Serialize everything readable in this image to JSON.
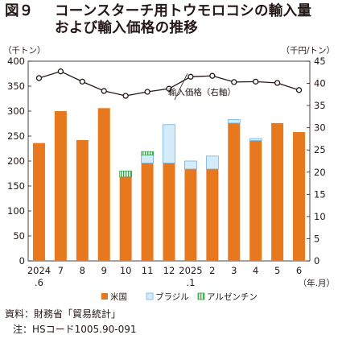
{
  "title": {
    "fig_number": "図９",
    "line1": "コーンスターチ用トウモロコシの輸入量",
    "line2": "および輸入価格の推移"
  },
  "chart_data": {
    "type": "bar",
    "categories": [
      "2024",
      "7",
      "8",
      "9",
      "10",
      "11",
      "12",
      "2025",
      "2",
      "3",
      "4",
      "5",
      "6"
    ],
    "category_sublabels": [
      ".6",
      "",
      "",
      "",
      "",
      "",
      "",
      ".1",
      "",
      "",
      "",
      "",
      ""
    ],
    "x_unit": "（年.月）",
    "left_axis": {
      "unit": "（千トン）",
      "min": 0,
      "max": 400,
      "ticks": [
        0,
        50,
        100,
        150,
        200,
        250,
        300,
        350,
        400
      ]
    },
    "right_axis": {
      "unit": "（千円/トン）",
      "min": 0,
      "max": 45,
      "ticks": [
        0,
        5,
        10,
        15,
        20,
        25,
        30,
        35,
        40,
        45
      ]
    },
    "stacked": true,
    "series": [
      {
        "name": "米国",
        "axis": "left",
        "color": "#e8781e",
        "values": [
          236,
          300,
          242,
          306,
          168,
          196,
          196,
          184,
          184,
          276,
          241,
          276,
          258
        ]
      },
      {
        "name": "ブラジル",
        "axis": "left",
        "color": "#d4ecfa",
        "values": [
          0,
          0,
          0,
          0,
          0,
          16,
          77,
          16,
          26,
          7,
          4,
          0,
          0
        ]
      },
      {
        "name": "アルゼンチン",
        "axis": "left",
        "color": "#ffffff",
        "values": [
          0,
          0,
          0,
          0,
          12,
          7,
          0,
          0,
          0,
          0,
          0,
          0,
          0
        ]
      },
      {
        "name": "輸入価格（右軸）",
        "axis": "right",
        "type": "line",
        "color": "#231815",
        "values": [
          41.2,
          42.7,
          40.4,
          38.3,
          37.2,
          38.1,
          38.8,
          41.5,
          41.7,
          40.3,
          40.4,
          40.1,
          38.5
        ]
      }
    ],
    "line_label": "輸入価格（右軸）",
    "legend_position": "bottom"
  },
  "notes": {
    "source": "資料：財務省「貿易統計」",
    "note": "注：HSコード1005.90-091"
  }
}
